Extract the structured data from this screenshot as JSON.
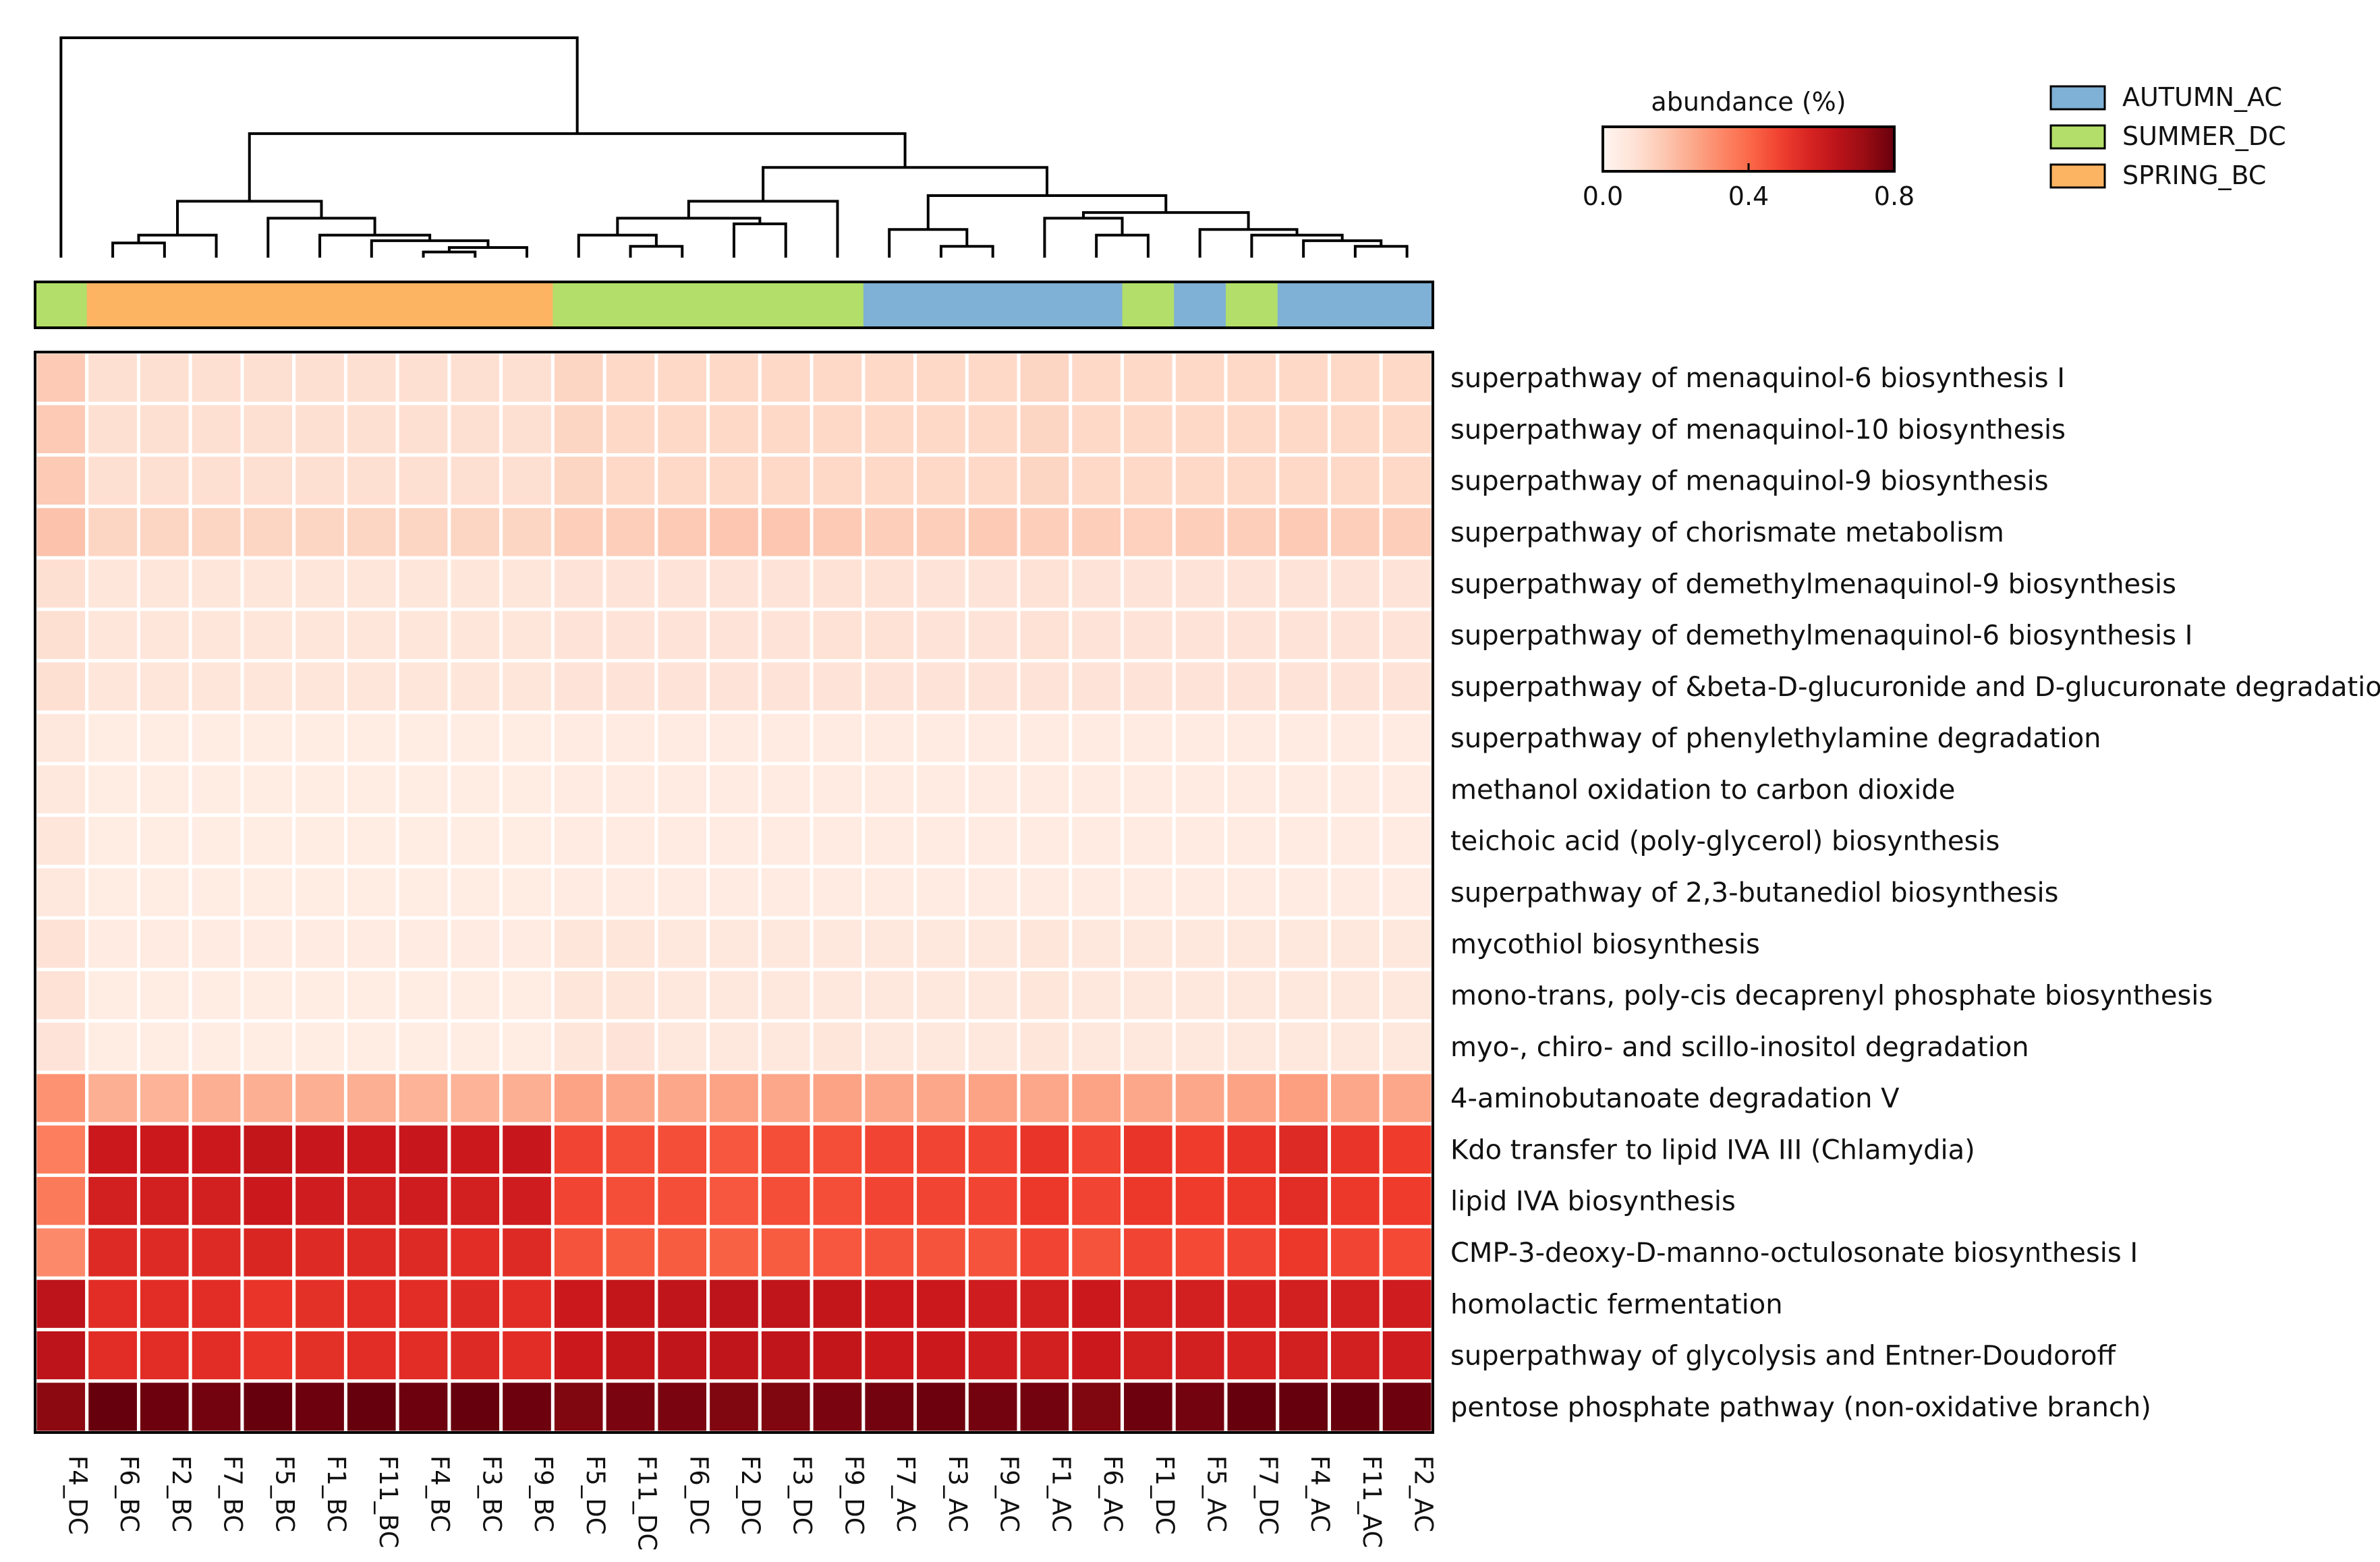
{
  "chart_data": {
    "type": "heatmap",
    "title": "",
    "colorbar": {
      "title": "abundance (%)",
      "min": 0.0,
      "max": 0.8,
      "ticks": [
        0.0,
        0.4,
        0.8
      ],
      "tick_labels": [
        "0.0",
        "0.4",
        "0.8"
      ],
      "colormap": "Reds"
    },
    "group_legend": [
      {
        "name": "AUTUMN_AC",
        "color": "#7fb0d5"
      },
      {
        "name": "SUMMER_DC",
        "color": "#b3de69"
      },
      {
        "name": "SPRING_BC",
        "color": "#fdb462"
      }
    ],
    "columns": [
      "F4_DC",
      "F6_BC",
      "F2_BC",
      "F7_BC",
      "F5_BC",
      "F1_BC",
      "F11_BC",
      "F4_BC",
      "F3_BC",
      "F9_BC",
      "F5_DC",
      "F11_DC",
      "F6_DC",
      "F2_DC",
      "F3_DC",
      "F9_DC",
      "F7_AC",
      "F3_AC",
      "F9_AC",
      "F1_AC",
      "F6_AC",
      "F1_DC",
      "F5_AC",
      "F7_DC",
      "F4_AC",
      "F11_AC",
      "F2_AC"
    ],
    "column_groups": [
      "SUMMER_DC",
      "SPRING_BC",
      "SPRING_BC",
      "SPRING_BC",
      "SPRING_BC",
      "SPRING_BC",
      "SPRING_BC",
      "SPRING_BC",
      "SPRING_BC",
      "SPRING_BC",
      "SUMMER_DC",
      "SUMMER_DC",
      "SUMMER_DC",
      "SUMMER_DC",
      "SUMMER_DC",
      "SUMMER_DC",
      "AUTUMN_AC",
      "AUTUMN_AC",
      "AUTUMN_AC",
      "AUTUMN_AC",
      "AUTUMN_AC",
      "SUMMER_DC",
      "AUTUMN_AC",
      "SUMMER_DC",
      "AUTUMN_AC",
      "AUTUMN_AC",
      "AUTUMN_AC"
    ],
    "rows": [
      "superpathway of menaquinol-6 biosynthesis I",
      "superpathway of menaquinol-10 biosynthesis",
      "superpathway of menaquinol-9 biosynthesis",
      "superpathway of chorismate metabolism",
      "superpathway of demethylmenaquinol-9 biosynthesis",
      "superpathway of demethylmenaquinol-6 biosynthesis I",
      "superpathway of &beta-D-glucuronide and D-glucuronate degradation",
      "superpathway of phenylethylamine degradation",
      "methanol oxidation to carbon dioxide",
      "teichoic acid (poly-glycerol) biosynthesis",
      "superpathway of 2,3-butanediol biosynthesis",
      "mycothiol biosynthesis",
      "mono-trans, poly-cis decaprenyl phosphate biosynthesis",
      "myo-, chiro- and scillo-inositol degradation",
      "4-aminobutanoate degradation V",
      "Kdo transfer to lipid IVA III (Chlamydia)",
      "lipid IVA biosynthesis",
      "CMP-3-deoxy-D-manno-octulosonate biosynthesis I",
      "homolactic fermentation",
      "superpathway of glycolysis and Entner-Doudoroff",
      "pentose phosphate pathway (non-oxidative branch)"
    ],
    "values": [
      [
        0.16,
        0.1,
        0.1,
        0.1,
        0.1,
        0.1,
        0.1,
        0.1,
        0.1,
        0.1,
        0.13,
        0.12,
        0.12,
        0.12,
        0.12,
        0.12,
        0.12,
        0.12,
        0.12,
        0.13,
        0.12,
        0.12,
        0.12,
        0.12,
        0.12,
        0.12,
        0.12
      ],
      [
        0.16,
        0.1,
        0.1,
        0.1,
        0.1,
        0.1,
        0.1,
        0.1,
        0.1,
        0.1,
        0.13,
        0.12,
        0.12,
        0.12,
        0.12,
        0.12,
        0.12,
        0.12,
        0.12,
        0.13,
        0.12,
        0.12,
        0.12,
        0.12,
        0.12,
        0.12,
        0.12
      ],
      [
        0.16,
        0.1,
        0.1,
        0.1,
        0.1,
        0.1,
        0.1,
        0.1,
        0.1,
        0.1,
        0.13,
        0.12,
        0.12,
        0.12,
        0.12,
        0.12,
        0.12,
        0.12,
        0.12,
        0.13,
        0.12,
        0.12,
        0.12,
        0.12,
        0.12,
        0.12,
        0.12
      ],
      [
        0.18,
        0.13,
        0.13,
        0.13,
        0.13,
        0.13,
        0.13,
        0.13,
        0.13,
        0.13,
        0.15,
        0.15,
        0.16,
        0.17,
        0.17,
        0.16,
        0.15,
        0.15,
        0.16,
        0.15,
        0.15,
        0.14,
        0.15,
        0.15,
        0.16,
        0.15,
        0.15
      ],
      [
        0.1,
        0.07,
        0.07,
        0.07,
        0.07,
        0.07,
        0.07,
        0.07,
        0.07,
        0.07,
        0.08,
        0.08,
        0.08,
        0.08,
        0.08,
        0.09,
        0.09,
        0.08,
        0.08,
        0.09,
        0.08,
        0.08,
        0.08,
        0.08,
        0.08,
        0.08,
        0.08
      ],
      [
        0.1,
        0.07,
        0.07,
        0.07,
        0.07,
        0.07,
        0.07,
        0.07,
        0.07,
        0.07,
        0.08,
        0.08,
        0.08,
        0.08,
        0.08,
        0.09,
        0.09,
        0.08,
        0.08,
        0.09,
        0.08,
        0.08,
        0.08,
        0.08,
        0.08,
        0.08,
        0.08
      ],
      [
        0.1,
        0.07,
        0.07,
        0.07,
        0.07,
        0.07,
        0.07,
        0.07,
        0.07,
        0.07,
        0.08,
        0.08,
        0.08,
        0.08,
        0.08,
        0.08,
        0.08,
        0.08,
        0.08,
        0.08,
        0.08,
        0.08,
        0.08,
        0.08,
        0.08,
        0.08,
        0.08
      ],
      [
        0.06,
        0.04,
        0.04,
        0.04,
        0.04,
        0.04,
        0.04,
        0.04,
        0.04,
        0.04,
        0.05,
        0.05,
        0.05,
        0.05,
        0.05,
        0.05,
        0.05,
        0.05,
        0.05,
        0.05,
        0.05,
        0.05,
        0.05,
        0.05,
        0.05,
        0.05,
        0.05
      ],
      [
        0.06,
        0.04,
        0.04,
        0.04,
        0.04,
        0.04,
        0.04,
        0.04,
        0.04,
        0.04,
        0.05,
        0.05,
        0.05,
        0.05,
        0.05,
        0.05,
        0.05,
        0.05,
        0.05,
        0.05,
        0.05,
        0.05,
        0.05,
        0.05,
        0.05,
        0.05,
        0.05
      ],
      [
        0.07,
        0.04,
        0.04,
        0.04,
        0.04,
        0.04,
        0.04,
        0.04,
        0.04,
        0.04,
        0.05,
        0.05,
        0.05,
        0.05,
        0.05,
        0.05,
        0.05,
        0.05,
        0.05,
        0.05,
        0.05,
        0.05,
        0.05,
        0.05,
        0.05,
        0.05,
        0.05
      ],
      [
        0.06,
        0.04,
        0.04,
        0.04,
        0.04,
        0.04,
        0.04,
        0.04,
        0.04,
        0.04,
        0.05,
        0.05,
        0.05,
        0.05,
        0.05,
        0.05,
        0.05,
        0.05,
        0.05,
        0.05,
        0.05,
        0.05,
        0.05,
        0.05,
        0.05,
        0.05,
        0.05
      ],
      [
        0.09,
        0.05,
        0.05,
        0.05,
        0.05,
        0.05,
        0.05,
        0.05,
        0.05,
        0.05,
        0.07,
        0.07,
        0.06,
        0.06,
        0.06,
        0.06,
        0.06,
        0.06,
        0.06,
        0.07,
        0.06,
        0.06,
        0.06,
        0.06,
        0.06,
        0.06,
        0.06
      ],
      [
        0.09,
        0.04,
        0.04,
        0.04,
        0.04,
        0.04,
        0.04,
        0.04,
        0.04,
        0.04,
        0.07,
        0.07,
        0.06,
        0.06,
        0.06,
        0.06,
        0.06,
        0.06,
        0.06,
        0.07,
        0.06,
        0.06,
        0.06,
        0.06,
        0.06,
        0.06,
        0.06
      ],
      [
        0.08,
        0.04,
        0.04,
        0.04,
        0.04,
        0.04,
        0.04,
        0.04,
        0.04,
        0.04,
        0.07,
        0.08,
        0.06,
        0.06,
        0.06,
        0.07,
        0.06,
        0.06,
        0.06,
        0.07,
        0.06,
        0.06,
        0.06,
        0.06,
        0.06,
        0.06,
        0.06
      ],
      [
        0.3,
        0.23,
        0.22,
        0.23,
        0.23,
        0.23,
        0.23,
        0.22,
        0.22,
        0.23,
        0.26,
        0.25,
        0.25,
        0.26,
        0.25,
        0.26,
        0.25,
        0.25,
        0.26,
        0.25,
        0.26,
        0.25,
        0.25,
        0.26,
        0.27,
        0.25,
        0.25
      ],
      [
        0.35,
        0.6,
        0.6,
        0.6,
        0.62,
        0.61,
        0.6,
        0.61,
        0.6,
        0.61,
        0.48,
        0.46,
        0.46,
        0.44,
        0.46,
        0.46,
        0.48,
        0.48,
        0.48,
        0.52,
        0.48,
        0.52,
        0.5,
        0.52,
        0.55,
        0.52,
        0.5
      ],
      [
        0.36,
        0.58,
        0.58,
        0.58,
        0.6,
        0.59,
        0.58,
        0.59,
        0.58,
        0.59,
        0.48,
        0.46,
        0.46,
        0.44,
        0.46,
        0.46,
        0.48,
        0.48,
        0.48,
        0.51,
        0.48,
        0.51,
        0.5,
        0.51,
        0.54,
        0.51,
        0.5
      ],
      [
        0.32,
        0.55,
        0.55,
        0.55,
        0.56,
        0.55,
        0.55,
        0.55,
        0.54,
        0.55,
        0.45,
        0.43,
        0.43,
        0.42,
        0.43,
        0.44,
        0.45,
        0.45,
        0.45,
        0.48,
        0.45,
        0.48,
        0.47,
        0.48,
        0.51,
        0.48,
        0.47
      ],
      [
        0.64,
        0.54,
        0.54,
        0.54,
        0.52,
        0.53,
        0.54,
        0.54,
        0.55,
        0.54,
        0.6,
        0.62,
        0.63,
        0.64,
        0.63,
        0.62,
        0.6,
        0.6,
        0.59,
        0.58,
        0.6,
        0.58,
        0.58,
        0.57,
        0.58,
        0.58,
        0.59
      ],
      [
        0.64,
        0.54,
        0.54,
        0.54,
        0.52,
        0.53,
        0.54,
        0.54,
        0.55,
        0.54,
        0.6,
        0.62,
        0.63,
        0.63,
        0.63,
        0.62,
        0.6,
        0.6,
        0.59,
        0.58,
        0.6,
        0.58,
        0.58,
        0.57,
        0.58,
        0.58,
        0.59
      ],
      [
        0.74,
        0.8,
        0.79,
        0.78,
        0.8,
        0.79,
        0.8,
        0.79,
        0.8,
        0.79,
        0.76,
        0.77,
        0.77,
        0.76,
        0.76,
        0.77,
        0.78,
        0.79,
        0.78,
        0.78,
        0.76,
        0.79,
        0.78,
        0.8,
        0.8,
        0.8,
        0.79
      ]
    ],
    "dendrogram": {
      "method": "hierarchical clustering",
      "leaf_order": [
        "F4_DC",
        "F6_BC",
        "F2_BC",
        "F7_BC",
        "F5_BC",
        "F1_BC",
        "F11_BC",
        "F4_BC",
        "F3_BC",
        "F9_BC",
        "F5_DC",
        "F11_DC",
        "F6_DC",
        "F2_DC",
        "F3_DC",
        "F9_DC",
        "F7_AC",
        "F3_AC",
        "F9_AC",
        "F1_AC",
        "F6_AC",
        "F1_DC",
        "F5_AC",
        "F7_DC",
        "F4_AC",
        "F11_AC",
        "F2_AC"
      ],
      "merges": [
        [
          7,
          8,
          0.5
        ],
        [
          27,
          9,
          0.9
        ],
        [
          6,
          28,
          1.5
        ],
        [
          5,
          29,
          2.0
        ],
        [
          1,
          2,
          1.3
        ],
        [
          31,
          3,
          2.0
        ],
        [
          30,
          4,
          3.5
        ],
        [
          32,
          33,
          5.0
        ],
        [
          11,
          12,
          1.0
        ],
        [
          10,
          35,
          2.0
        ],
        [
          13,
          14,
          3.0
        ],
        [
          36,
          37,
          3.5
        ],
        [
          38,
          15,
          5.0
        ],
        [
          17,
          18,
          1.0
        ],
        [
          16,
          40,
          2.5
        ],
        [
          20,
          21,
          2.0
        ],
        [
          19,
          42,
          3.5
        ],
        [
          25,
          26,
          1.0
        ],
        [
          24,
          44,
          1.5
        ],
        [
          23,
          45,
          2.0
        ],
        [
          46,
          22,
          2.5
        ],
        [
          43,
          47,
          4.0
        ],
        [
          41,
          48,
          5.5
        ],
        [
          39,
          49,
          8.0
        ],
        [
          34,
          50,
          11.0
        ],
        [
          0,
          51,
          19.5
        ]
      ]
    }
  }
}
